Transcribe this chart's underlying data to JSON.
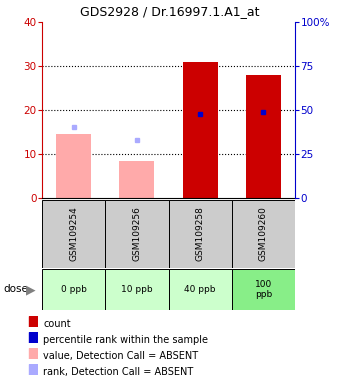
{
  "title": "GDS2928 / Dr.16997.1.A1_at",
  "samples": [
    "GSM109254",
    "GSM109256",
    "GSM109258",
    "GSM109260"
  ],
  "doses": [
    "0 ppb",
    "10 ppb",
    "40 ppb",
    "100\nppb"
  ],
  "dose_colors": [
    "#ccffcc",
    "#ccffcc",
    "#ccffcc",
    "#88ee88"
  ],
  "bar_values_red": [
    0,
    0,
    31,
    28
  ],
  "bar_values_pink": [
    14.5,
    8.5,
    0,
    0
  ],
  "dot_blue_dark": [
    null,
    null,
    19.2,
    19.5
  ],
  "dot_blue_light": [
    16.2,
    13.2,
    null,
    null
  ],
  "left_ylim": [
    0,
    40
  ],
  "right_ylim": [
    0,
    100
  ],
  "left_yticks": [
    0,
    10,
    20,
    30,
    40
  ],
  "right_yticks": [
    0,
    25,
    50,
    75,
    100
  ],
  "right_yticklabels": [
    "0",
    "25",
    "50",
    "75",
    "100%"
  ],
  "color_red": "#cc0000",
  "color_pink": "#ffaaaa",
  "color_blue_dark": "#0000cc",
  "color_blue_light": "#aaaaff",
  "color_sample_bg": "#cccccc",
  "bar_width": 0.55,
  "legend_items": [
    {
      "color": "#cc0000",
      "label": "count"
    },
    {
      "color": "#0000cc",
      "label": "percentile rank within the sample"
    },
    {
      "color": "#ffaaaa",
      "label": "value, Detection Call = ABSENT"
    },
    {
      "color": "#aaaaff",
      "label": "rank, Detection Call = ABSENT"
    }
  ]
}
